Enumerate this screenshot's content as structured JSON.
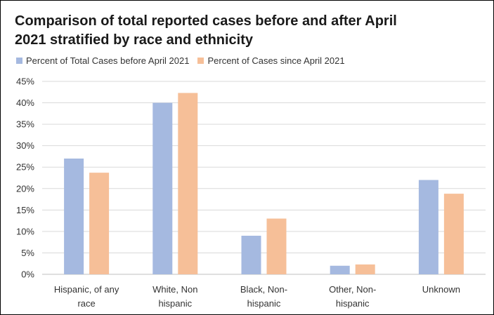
{
  "chart_data": {
    "type": "bar",
    "title_lines": [
      "Comparison of total reported cases before and after April",
      "2021 stratified by race and ethnicity"
    ],
    "categories": [
      [
        "Hispanic, of any",
        "race"
      ],
      [
        "White, Non",
        "hispanic"
      ],
      [
        "Black, Non-",
        "hispanic"
      ],
      [
        "Other, Non-",
        "hispanic"
      ],
      [
        "Unknown"
      ]
    ],
    "series": [
      {
        "name": "Percent of Total Cases before April 2021",
        "color": "#a5b9e0",
        "values": [
          27,
          40,
          9,
          2,
          22
        ]
      },
      {
        "name": "Percent of Cases since April 2021",
        "color": "#f6bf98",
        "values": [
          23.7,
          42.3,
          13,
          2.3,
          18.8
        ]
      }
    ],
    "yticks": [
      "0%",
      "5%",
      "10%",
      "15%",
      "20%",
      "25%",
      "30%",
      "35%",
      "40%",
      "45%"
    ],
    "ylim": [
      0,
      45
    ],
    "grid": true,
    "legend_position": "top-left"
  }
}
